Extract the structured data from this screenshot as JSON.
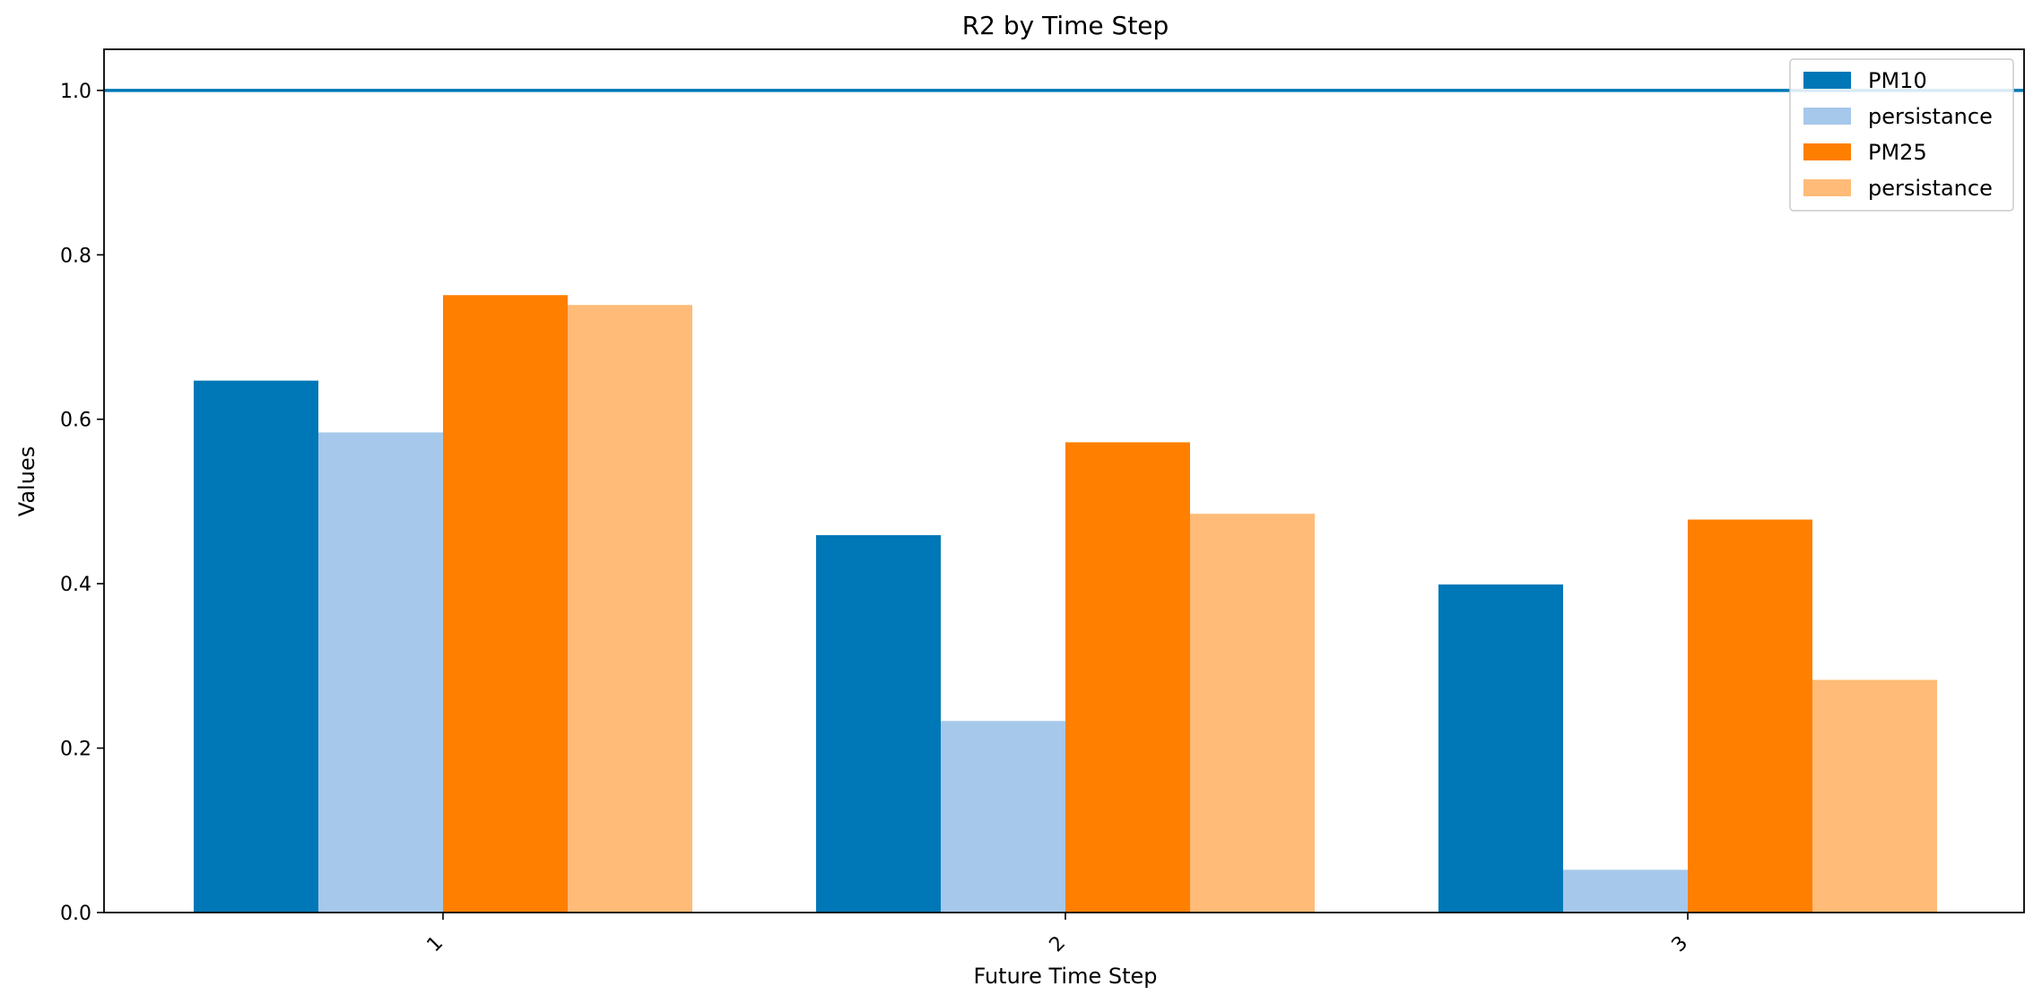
{
  "chart_data": {
    "type": "bar",
    "title": "R2 by Time Step",
    "xlabel": "Future Time Step",
    "ylabel": "Values",
    "categories": [
      "1",
      "2",
      "3"
    ],
    "ylim": [
      0.0,
      1.05
    ],
    "yticks": [
      "0.0",
      "0.2",
      "0.4",
      "0.6",
      "0.8",
      "1.0"
    ],
    "reference_line": {
      "y": 1.0,
      "color": "#0077b6"
    },
    "legend_position": "top-right",
    "grid": false,
    "series": [
      {
        "name": "PM10",
        "values": [
          0.647,
          0.459,
          0.399
        ],
        "color": "#0077b6"
      },
      {
        "name": "persistance",
        "values": [
          0.584,
          0.233,
          0.052
        ],
        "color": "#a6c8ea"
      },
      {
        "name": "PM25",
        "values": [
          0.751,
          0.572,
          0.478
        ],
        "color": "#ff7f00"
      },
      {
        "name": "persistance",
        "values": [
          0.739,
          0.485,
          0.283
        ],
        "color": "#ffbb77"
      }
    ]
  }
}
